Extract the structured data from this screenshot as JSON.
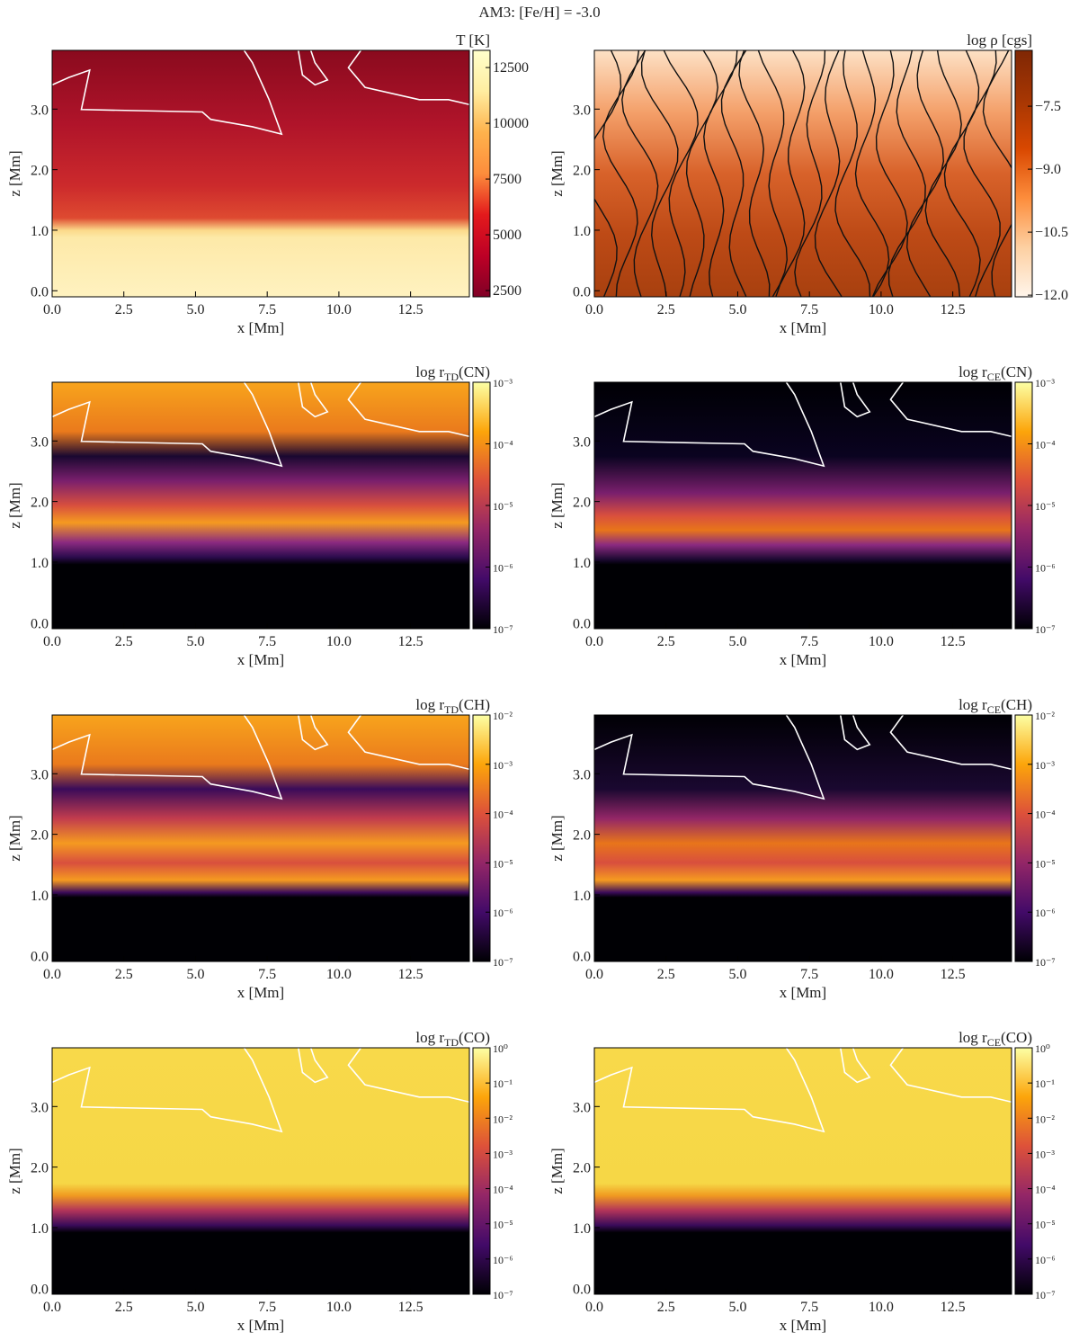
{
  "title": "AM3: [Fe/H] = -3.0",
  "chart_data": [
    {
      "type": "heatmap",
      "colorbar_label": [
        "T [K]"
      ],
      "xlabel": "x [Mm]",
      "ylabel": "z [Mm]",
      "xlim": [
        0,
        14.55
      ],
      "ylim": [
        -0.1,
        3.97
      ],
      "xticks": [
        {
          "value": 0,
          "label": "0.0"
        },
        {
          "value": 2.5,
          "label": "2.5"
        },
        {
          "value": 5,
          "label": "5.0"
        },
        {
          "value": 7.5,
          "label": "7.5"
        },
        {
          "value": 10,
          "label": "10.0"
        },
        {
          "value": 12.5,
          "label": "12.5"
        }
      ],
      "yticks": [
        {
          "value": 0,
          "label": "0.0"
        },
        {
          "value": 1,
          "label": "1.0"
        },
        {
          "value": 2,
          "label": "2.0"
        },
        {
          "value": 3,
          "label": "3.0"
        }
      ],
      "colormap": "ylorrd",
      "clog": false,
      "clim": [
        2220,
        13270
      ],
      "cticks": [
        2500,
        5000,
        7500,
        10000,
        12500
      ],
      "contours": true,
      "streamlines": false
    },
    {
      "type": "heatmap",
      "colorbar_label": [
        "log ρ [cgs]"
      ],
      "xlabel": "x [Mm]",
      "ylabel": "z [Mm]",
      "xlim": [
        0,
        14.55
      ],
      "ylim": [
        -0.1,
        3.97
      ],
      "xticks": [
        {
          "value": 0,
          "label": "0.0"
        },
        {
          "value": 2.5,
          "label": "2.5"
        },
        {
          "value": 5,
          "label": "5.0"
        },
        {
          "value": 7.5,
          "label": "7.5"
        },
        {
          "value": 10,
          "label": "10.0"
        },
        {
          "value": 12.5,
          "label": "12.5"
        }
      ],
      "yticks": [
        {
          "value": 0,
          "label": "0.0"
        },
        {
          "value": 1,
          "label": "1.0"
        },
        {
          "value": 2,
          "label": "2.0"
        },
        {
          "value": 3,
          "label": "3.0"
        }
      ],
      "colormap": "oranges",
      "clog": false,
      "clim": [
        -12.04,
        -6.17
      ],
      "cticks": [
        {
          "value": -7.5,
          "label": "−7.5"
        },
        {
          "value": -9,
          "label": "−9.0"
        },
        {
          "value": -10.5,
          "label": "−10.5"
        },
        {
          "value": -12,
          "label": "−12.0"
        }
      ],
      "contours": false,
      "streamlines": true
    },
    {
      "type": "heatmap",
      "colorbar_label": [
        "log r",
        "TD",
        "(CN)"
      ],
      "xlabel": "x [Mm]",
      "ylabel": "z [Mm]",
      "xlim": [
        0,
        14.55
      ],
      "ylim": [
        -0.1,
        3.97
      ],
      "xticks": [
        {
          "value": 0,
          "label": "0.0"
        },
        {
          "value": 2.5,
          "label": "2.5"
        },
        {
          "value": 5,
          "label": "5.0"
        },
        {
          "value": 7.5,
          "label": "7.5"
        },
        {
          "value": 10,
          "label": "10.0"
        },
        {
          "value": 12.5,
          "label": "12.5"
        }
      ],
      "yticks": [
        {
          "value": 0,
          "label": "0.0"
        },
        {
          "value": 1,
          "label": "1.0"
        },
        {
          "value": 2,
          "label": "2.0"
        },
        {
          "value": 3,
          "label": "3.0"
        }
      ],
      "colormap": "inferno",
      "clog": true,
      "clim": [
        1e-07,
        0.001
      ],
      "cticks": [
        {
          "value": 0.001,
          "label": "10⁻³"
        },
        {
          "value": 0.0001,
          "label": "10⁻⁴"
        },
        {
          "value": 1e-05,
          "label": "10⁻⁵"
        },
        {
          "value": 1e-06,
          "label": "10⁻⁶"
        },
        {
          "value": 1e-07,
          "label": "10⁻⁷"
        }
      ],
      "contours": true,
      "streamlines": false
    },
    {
      "type": "heatmap",
      "colorbar_label": [
        "log r",
        "CE",
        "(CN)"
      ],
      "xlabel": "x [Mm]",
      "ylabel": "z [Mm]",
      "xlim": [
        0,
        14.55
      ],
      "ylim": [
        -0.1,
        3.97
      ],
      "xticks": [
        {
          "value": 0,
          "label": "0.0"
        },
        {
          "value": 2.5,
          "label": "2.5"
        },
        {
          "value": 5,
          "label": "5.0"
        },
        {
          "value": 7.5,
          "label": "7.5"
        },
        {
          "value": 10,
          "label": "10.0"
        },
        {
          "value": 12.5,
          "label": "12.5"
        }
      ],
      "yticks": [
        {
          "value": 0,
          "label": "0.0"
        },
        {
          "value": 1,
          "label": "1.0"
        },
        {
          "value": 2,
          "label": "2.0"
        },
        {
          "value": 3,
          "label": "3.0"
        }
      ],
      "colormap": "inferno",
      "clog": true,
      "clim": [
        1e-07,
        0.001
      ],
      "cticks": [
        {
          "value": 0.001,
          "label": "10⁻³"
        },
        {
          "value": 0.0001,
          "label": "10⁻⁴"
        },
        {
          "value": 1e-05,
          "label": "10⁻⁵"
        },
        {
          "value": 1e-06,
          "label": "10⁻⁶"
        },
        {
          "value": 1e-07,
          "label": "10⁻⁷"
        }
      ],
      "contours": true,
      "streamlines": false
    },
    {
      "type": "heatmap",
      "colorbar_label": [
        "log r",
        "TD",
        "(CH)"
      ],
      "xlabel": "x [Mm]",
      "ylabel": "z [Mm]",
      "xlim": [
        0,
        14.55
      ],
      "ylim": [
        -0.1,
        3.97
      ],
      "xticks": [
        {
          "value": 0,
          "label": "0.0"
        },
        {
          "value": 2.5,
          "label": "2.5"
        },
        {
          "value": 5,
          "label": "5.0"
        },
        {
          "value": 7.5,
          "label": "7.5"
        },
        {
          "value": 10,
          "label": "10.0"
        },
        {
          "value": 12.5,
          "label": "12.5"
        }
      ],
      "yticks": [
        {
          "value": 0,
          "label": "0.0"
        },
        {
          "value": 1,
          "label": "1.0"
        },
        {
          "value": 2,
          "label": "2.0"
        },
        {
          "value": 3,
          "label": "3.0"
        }
      ],
      "colormap": "inferno",
      "clog": true,
      "clim": [
        1e-07,
        0.01
      ],
      "cticks": [
        {
          "value": 0.01,
          "label": "10⁻²"
        },
        {
          "value": 0.001,
          "label": "10⁻³"
        },
        {
          "value": 0.0001,
          "label": "10⁻⁴"
        },
        {
          "value": 1e-05,
          "label": "10⁻⁵"
        },
        {
          "value": 1e-06,
          "label": "10⁻⁶"
        },
        {
          "value": 1e-07,
          "label": "10⁻⁷"
        }
      ],
      "contours": true,
      "streamlines": false
    },
    {
      "type": "heatmap",
      "colorbar_label": [
        "log r",
        "CE",
        "(CH)"
      ],
      "xlabel": "x [Mm]",
      "ylabel": "z [Mm]",
      "xlim": [
        0,
        14.55
      ],
      "ylim": [
        -0.1,
        3.97
      ],
      "xticks": [
        {
          "value": 0,
          "label": "0.0"
        },
        {
          "value": 2.5,
          "label": "2.5"
        },
        {
          "value": 5,
          "label": "5.0"
        },
        {
          "value": 7.5,
          "label": "7.5"
        },
        {
          "value": 10,
          "label": "10.0"
        },
        {
          "value": 12.5,
          "label": "12.5"
        }
      ],
      "yticks": [
        {
          "value": 0,
          "label": "0.0"
        },
        {
          "value": 1,
          "label": "1.0"
        },
        {
          "value": 2,
          "label": "2.0"
        },
        {
          "value": 3,
          "label": "3.0"
        }
      ],
      "colormap": "inferno",
      "clog": true,
      "clim": [
        1e-07,
        0.01
      ],
      "cticks": [
        {
          "value": 0.01,
          "label": "10⁻²"
        },
        {
          "value": 0.001,
          "label": "10⁻³"
        },
        {
          "value": 0.0001,
          "label": "10⁻⁴"
        },
        {
          "value": 1e-05,
          "label": "10⁻⁵"
        },
        {
          "value": 1e-06,
          "label": "10⁻⁶"
        },
        {
          "value": 1e-07,
          "label": "10⁻⁷"
        }
      ],
      "contours": true,
      "streamlines": false
    },
    {
      "type": "heatmap",
      "colorbar_label": [
        "log r",
        "TD",
        "(CO)"
      ],
      "xlabel": "x [Mm]",
      "ylabel": "z [Mm]",
      "xlim": [
        0,
        14.55
      ],
      "ylim": [
        -0.1,
        3.97
      ],
      "xticks": [
        {
          "value": 0,
          "label": "0.0"
        },
        {
          "value": 2.5,
          "label": "2.5"
        },
        {
          "value": 5,
          "label": "5.0"
        },
        {
          "value": 7.5,
          "label": "7.5"
        },
        {
          "value": 10,
          "label": "10.0"
        },
        {
          "value": 12.5,
          "label": "12.5"
        }
      ],
      "yticks": [
        {
          "value": 0,
          "label": "0.0"
        },
        {
          "value": 1,
          "label": "1.0"
        },
        {
          "value": 2,
          "label": "2.0"
        },
        {
          "value": 3,
          "label": "3.0"
        }
      ],
      "colormap": "inferno",
      "clog": true,
      "clim": [
        1e-07,
        1
      ],
      "cticks": [
        {
          "value": 1,
          "label": "10⁰"
        },
        {
          "value": 0.1,
          "label": "10⁻¹"
        },
        {
          "value": 0.01,
          "label": "10⁻²"
        },
        {
          "value": 0.001,
          "label": "10⁻³"
        },
        {
          "value": 0.0001,
          "label": "10⁻⁴"
        },
        {
          "value": 1e-05,
          "label": "10⁻⁵"
        },
        {
          "value": 1e-06,
          "label": "10⁻⁶"
        },
        {
          "value": 1e-07,
          "label": "10⁻⁷"
        }
      ],
      "contours": true,
      "streamlines": false
    },
    {
      "type": "heatmap",
      "colorbar_label": [
        "log r",
        "CE",
        "(CO)"
      ],
      "xlabel": "x [Mm]",
      "ylabel": "z [Mm]",
      "xlim": [
        0,
        14.55
      ],
      "ylim": [
        -0.1,
        3.97
      ],
      "xticks": [
        {
          "value": 0,
          "label": "0.0"
        },
        {
          "value": 2.5,
          "label": "2.5"
        },
        {
          "value": 5,
          "label": "5.0"
        },
        {
          "value": 7.5,
          "label": "7.5"
        },
        {
          "value": 10,
          "label": "10.0"
        },
        {
          "value": 12.5,
          "label": "12.5"
        }
      ],
      "yticks": [
        {
          "value": 0,
          "label": "0.0"
        },
        {
          "value": 1,
          "label": "1.0"
        },
        {
          "value": 2,
          "label": "2.0"
        },
        {
          "value": 3,
          "label": "3.0"
        }
      ],
      "colormap": "inferno",
      "clog": true,
      "clim": [
        1e-07,
        1
      ],
      "cticks": [
        {
          "value": 1,
          "label": "10⁰"
        },
        {
          "value": 0.1,
          "label": "10⁻¹"
        },
        {
          "value": 0.01,
          "label": "10⁻²"
        },
        {
          "value": 0.001,
          "label": "10⁻³"
        },
        {
          "value": 0.0001,
          "label": "10⁻⁴"
        },
        {
          "value": 1e-05,
          "label": "10⁻⁵"
        },
        {
          "value": 1e-06,
          "label": "10⁻⁶"
        },
        {
          "value": 1e-07,
          "label": "10⁻⁷"
        }
      ],
      "contours": true,
      "streamlines": false
    }
  ]
}
